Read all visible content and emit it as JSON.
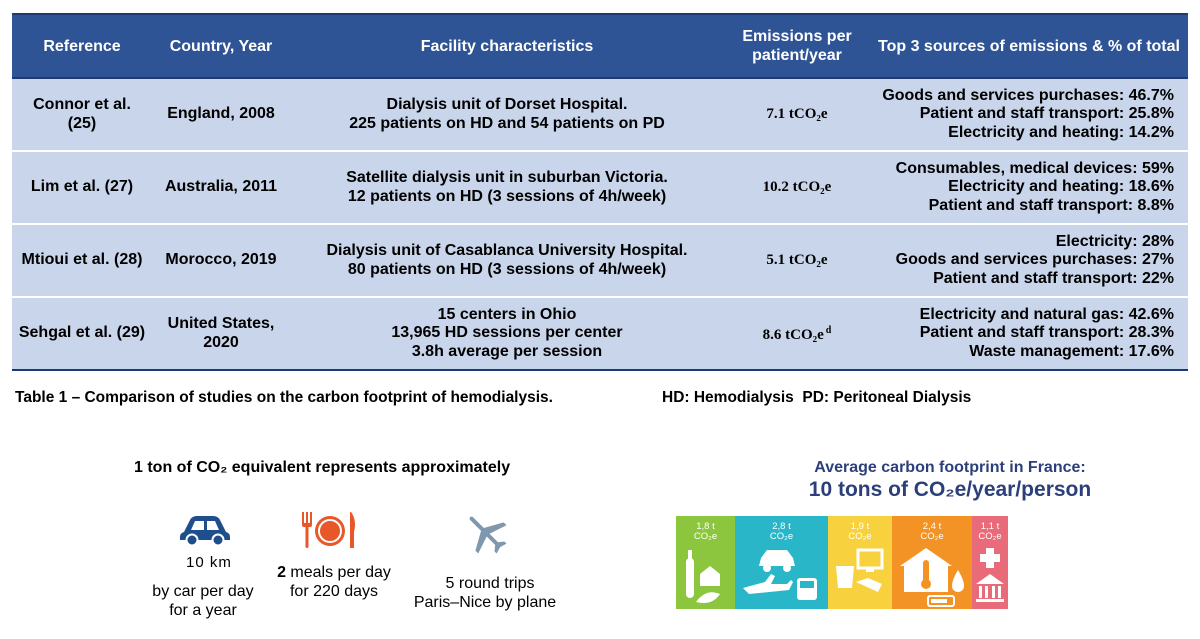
{
  "table": {
    "headers": [
      "Reference",
      "Country, Year",
      "Facility characteristics",
      "Emissions per patient/year",
      "Top 3 sources of emissions & % of total"
    ],
    "rows": [
      {
        "reference": "Connor et al. (25)",
        "country_year": "England, 2008",
        "facility": [
          "Dialysis unit of Dorset Hospital.",
          "225 patients on HD and 54 patients on PD"
        ],
        "emissions": "7.1 tCO₂e",
        "emissions_note": "",
        "sources": [
          "Goods and services purchases: 46.7%",
          "Patient and staff transport: 25.8%",
          "Electricity and heating: 14.2%"
        ]
      },
      {
        "reference": "Lim et al. (27)",
        "country_year": "Australia, 2011",
        "facility": [
          "Satellite dialysis unit in suburban Victoria.",
          "12 patients on HD (3 sessions of 4h/week)"
        ],
        "emissions": "10.2 tCO₂e",
        "emissions_note": "",
        "sources": [
          "Consumables, medical devices: 59%",
          "Electricity and heating: 18.6%",
          "Patient and staff transport: 8.8%"
        ]
      },
      {
        "reference": "Mtioui et al. (28)",
        "country_year": "Morocco, 2019",
        "facility": [
          "Dialysis unit of Casablanca University Hospital.",
          "80 patients on HD (3 sessions of 4h/week)"
        ],
        "emissions": "5.1 tCO₂e",
        "emissions_note": "",
        "sources": [
          "Electricity: 28%",
          "Goods and services purchases: 27%",
          "Patient and staff transport: 22%"
        ]
      },
      {
        "reference": "Sehgal et al. (29)",
        "country_year": "United States, 2020",
        "facility": [
          "15 centers in Ohio",
          "13,965 HD sessions per center",
          "3.8h average per session"
        ],
        "emissions": "8.6 tCO₂e",
        "emissions_note": "d",
        "sources": [
          "Electricity and natural gas: 42.6%",
          "Patient and staff transport: 28.3%",
          "Waste management: 17.6%"
        ]
      }
    ]
  },
  "caption": "Table 1 – Comparison of studies on the carbon footprint of hemodialysis.",
  "abbreviations": "HD: Hemodialysis  PD: Peritoneal Dialysis",
  "equivalents": {
    "title": "1 ton of CO₂ equivalent represents approximately",
    "car": {
      "bold": "10 km",
      "text": "by car per day for a year",
      "icon": "car-icon"
    },
    "meals": {
      "bold": "2",
      "text": " meals per day for 220 days",
      "icon": "plate-icon"
    },
    "plane": {
      "bold": "5 round trips",
      "text": "Paris–Nice by plane",
      "icon": "plane-icon"
    }
  },
  "france": {
    "title": "Average carbon footprint in France:",
    "subtitle": "10 tons of CO₂e/year/person",
    "unit": "CO₂e",
    "blocks": [
      {
        "value": "1,8 t",
        "color": "#8cc63f",
        "icon": "food-icon"
      },
      {
        "value": "2,8 t",
        "color": "#29b6c9",
        "icon": "transport-icon"
      },
      {
        "value": "1,9 t",
        "color": "#f7d23e",
        "icon": "goods-icon"
      },
      {
        "value": "2,4 t",
        "color": "#f39325",
        "icon": "housing-icon"
      },
      {
        "value": "1,1 t",
        "color": "#e96a78",
        "icon": "public-services-icon"
      }
    ]
  },
  "colors": {
    "header": "#2f5496",
    "row": "#c9d5ea",
    "title_blue": "#2c3f7a"
  }
}
